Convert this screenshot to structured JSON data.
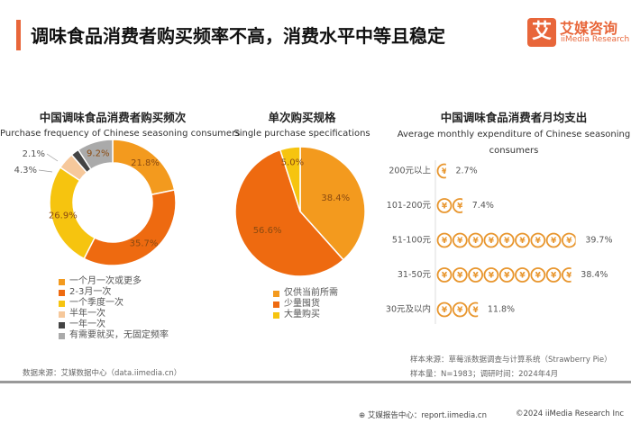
{
  "header": {
    "title": "调味食品消费者购买频率不高，消费水平中等且稳定",
    "logo_cn": "艾媒咨询",
    "logo_en": "iiMedia Research",
    "logo_mark": "艾",
    "accent": "#E8663A"
  },
  "chart_data": [
    {
      "type": "pie",
      "donut": true,
      "title": "中国调味食品消费者购买频次",
      "subtitle": "Purchase frequency of Chinese seasoning consumers",
      "categories": [
        "一个月一次或更多",
        "2-3月一次",
        "一个季度一次",
        "半年一次",
        "一年一次",
        "有需要就买，无固定频率"
      ],
      "values": [
        21.8,
        35.7,
        26.9,
        4.3,
        2.1,
        9.2
      ],
      "labels": [
        "21.8%",
        "35.7%",
        "26.9%",
        "4.3%",
        "2.1%",
        "9.2%"
      ],
      "colors": [
        "#F39A1E",
        "#EE6A10",
        "#F6C40F",
        "#F6C89B",
        "#444444",
        "#AAAAAA"
      ],
      "legend": "bottom"
    },
    {
      "type": "pie",
      "title": "单次购买规格",
      "subtitle": "Single purchase specifications",
      "categories": [
        "仅供当前所需",
        "少量囤货",
        "大量购买"
      ],
      "values": [
        38.4,
        56.6,
        5.0
      ],
      "labels": [
        "38.4%",
        "56.6%",
        "5.0%"
      ],
      "colors": [
        "#F39A1E",
        "#EE6A10",
        "#F6C40F"
      ],
      "legend": "bottom"
    },
    {
      "type": "bar",
      "orientation": "horizontal",
      "style": "pictograph-yuan-coins",
      "title": "中国调味食品消费者月均支出",
      "subtitle": "Average monthly expenditure of Chinese seasoning",
      "subtitle2": "consumers",
      "categories": [
        "200元以上",
        "101-200元",
        "51-100元",
        "31-50元",
        "30元及以内"
      ],
      "values": [
        2.7,
        7.4,
        39.7,
        38.4,
        11.8
      ],
      "labels": [
        "2.7%",
        "7.4%",
        "39.7%",
        "38.4%",
        "11.8%"
      ],
      "color": "#E8962E",
      "coin_glyph": "¥"
    }
  ],
  "footer": {
    "source": "数据来源：艾媒数据中心（data.iimedia.cn）",
    "sample_source": "样本来源：草莓派数据调查与计算系统（Strawberry Pie）",
    "sample_size": "样本量：N=1983；调研时间：2024年4月",
    "report": "艾媒报告中心：report.iimedia.cn",
    "copyright": "©2024  iiMedia Research Inc"
  }
}
